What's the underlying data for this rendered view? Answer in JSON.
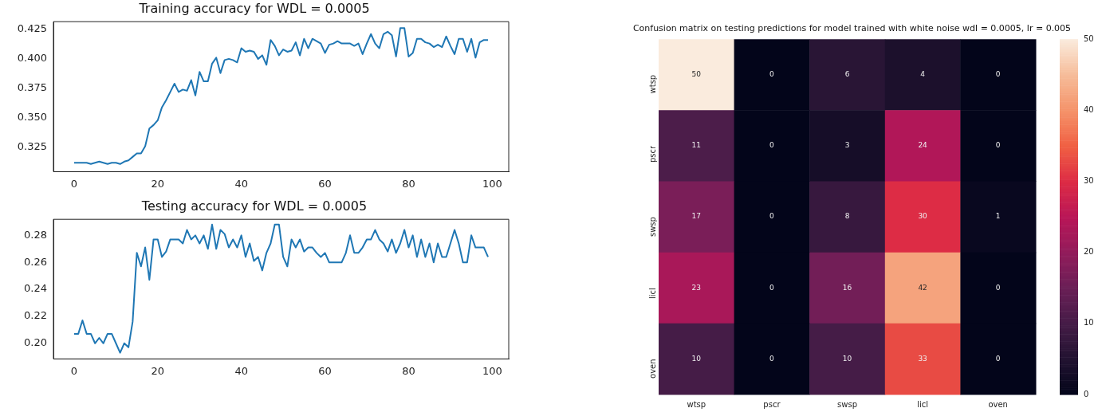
{
  "chart_data": [
    {
      "type": "line",
      "title": "Training accuracy for WDL = 0.0005",
      "x": [
        0,
        1,
        2,
        3,
        4,
        5,
        6,
        7,
        8,
        9,
        10,
        11,
        12,
        13,
        14,
        15,
        16,
        17,
        18,
        19,
        20,
        21,
        22,
        23,
        24,
        25,
        26,
        27,
        28,
        29,
        30,
        31,
        32,
        33,
        34,
        35,
        36,
        37,
        38,
        39,
        40,
        41,
        42,
        43,
        44,
        45,
        46,
        47,
        48,
        49,
        50,
        51,
        52,
        53,
        54,
        55,
        56,
        57,
        58,
        59,
        60,
        61,
        62,
        63,
        64,
        65,
        66,
        67,
        68,
        69,
        70,
        71,
        72,
        73,
        74,
        75,
        76,
        77,
        78,
        79,
        80,
        81,
        82,
        83,
        84,
        85,
        86,
        87,
        88,
        89,
        90,
        91,
        92,
        93,
        94,
        95,
        96,
        97,
        98,
        99
      ],
      "series": [
        {
          "color": "#1f77b4",
          "values": [
            0.312,
            0.312,
            0.312,
            0.312,
            0.311,
            0.312,
            0.313,
            0.312,
            0.311,
            0.312,
            0.312,
            0.311,
            0.313,
            0.314,
            0.317,
            0.32,
            0.32,
            0.326,
            0.341,
            0.344,
            0.348,
            0.359,
            0.365,
            0.372,
            0.379,
            0.372,
            0.374,
            0.373,
            0.382,
            0.369,
            0.389,
            0.381,
            0.381,
            0.396,
            0.401,
            0.388,
            0.399,
            0.4,
            0.399,
            0.397,
            0.409,
            0.406,
            0.407,
            0.406,
            0.4,
            0.403,
            0.395,
            0.416,
            0.411,
            0.403,
            0.408,
            0.406,
            0.407,
            0.414,
            0.403,
            0.417,
            0.409,
            0.417,
            0.415,
            0.413,
            0.405,
            0.412,
            0.413,
            0.415,
            0.413,
            0.413,
            0.413,
            0.411,
            0.413,
            0.404,
            0.413,
            0.421,
            0.413,
            0.409,
            0.421,
            0.423,
            0.42,
            0.402,
            0.426,
            0.426,
            0.402,
            0.405,
            0.417,
            0.417,
            0.414,
            0.413,
            0.41,
            0.412,
            0.41,
            0.419,
            0.411,
            0.404,
            0.417,
            0.417,
            0.406,
            0.417,
            0.401,
            0.414,
            0.416,
            0.416
          ]
        }
      ],
      "xlim": [
        -4.95,
        103.95
      ],
      "xticks": [
        0,
        20,
        40,
        60,
        80,
        100
      ],
      "ylim": [
        0.3045,
        0.4315
      ],
      "yticks": [
        0.325,
        {
          "value": 0.35,
          "label": "0.350"
        },
        0.375,
        {
          "value": 0.4,
          "label": "0.400"
        },
        0.425
      ],
      "grid": false,
      "legend": false,
      "marker": "none",
      "line_style": "solid"
    },
    {
      "type": "line",
      "title": "Testing accuracy for WDL = 0.0005",
      "x": [
        0,
        1,
        2,
        3,
        4,
        5,
        6,
        7,
        8,
        9,
        10,
        11,
        12,
        13,
        14,
        15,
        16,
        17,
        18,
        19,
        20,
        21,
        22,
        23,
        24,
        25,
        26,
        27,
        28,
        29,
        30,
        31,
        32,
        33,
        34,
        35,
        36,
        37,
        38,
        39,
        40,
        41,
        42,
        43,
        44,
        45,
        46,
        47,
        48,
        49,
        50,
        51,
        52,
        53,
        54,
        55,
        56,
        57,
        58,
        59,
        60,
        61,
        62,
        63,
        64,
        65,
        66,
        67,
        68,
        69,
        70,
        71,
        72,
        73,
        74,
        75,
        76,
        77,
        78,
        79,
        80,
        81,
        82,
        83,
        84,
        85,
        86,
        87,
        88,
        89,
        90,
        91,
        92,
        93,
        94,
        95,
        96,
        97,
        98,
        99
      ],
      "series": [
        {
          "color": "#1f77b4",
          "values": [
            0.207,
            0.207,
            0.217,
            0.207,
            0.207,
            0.2,
            0.204,
            0.2,
            0.207,
            0.207,
            0.2,
            0.193,
            0.2,
            0.197,
            0.216,
            0.267,
            0.257,
            0.271,
            0.247,
            0.277,
            0.277,
            0.264,
            0.268,
            0.277,
            0.277,
            0.277,
            0.274,
            0.284,
            0.277,
            0.28,
            0.274,
            0.28,
            0.27,
            0.288,
            0.27,
            0.284,
            0.281,
            0.271,
            0.277,
            0.271,
            0.28,
            0.264,
            0.274,
            0.261,
            0.264,
            0.254,
            0.267,
            0.274,
            0.288,
            0.288,
            0.264,
            0.257,
            0.277,
            0.271,
            0.277,
            0.268,
            0.271,
            0.271,
            0.267,
            0.264,
            0.267,
            0.26,
            0.26,
            0.26,
            0.26,
            0.267,
            0.28,
            0.267,
            0.267,
            0.271,
            0.277,
            0.277,
            0.284,
            0.277,
            0.274,
            0.268,
            0.277,
            0.267,
            0.274,
            0.284,
            0.271,
            0.28,
            0.264,
            0.277,
            0.264,
            0.274,
            0.26,
            0.274,
            0.264,
            0.264,
            0.274,
            0.284,
            0.274,
            0.26,
            0.26,
            0.28,
            0.271,
            0.271,
            0.271,
            0.264
          ]
        }
      ],
      "xlim": [
        -4.95,
        103.95
      ],
      "xticks": [
        0,
        20,
        40,
        60,
        80,
        100
      ],
      "ylim": [
        0.1884,
        0.2919
      ],
      "yticks": [
        {
          "value": 0.2,
          "label": "0.20"
        },
        0.22,
        0.24,
        0.26,
        0.28
      ],
      "grid": false,
      "legend": false,
      "marker": "none",
      "line_style": "solid"
    },
    {
      "type": "heatmap",
      "title": "Confusion matrix on testing predictions for model trained with white noise wdl = 0.0005, lr = 0.005",
      "categories": [
        "wtsp",
        "pscr",
        "swsp",
        "licl",
        "oven"
      ],
      "y_categories": [
        "wtsp",
        "pscr",
        "swsp",
        "licl",
        "oven"
      ],
      "cells": [
        [
          50,
          0,
          6,
          4,
          0
        ],
        [
          11,
          0,
          3,
          24,
          0
        ],
        [
          17,
          0,
          8,
          30,
          1
        ],
        [
          23,
          0,
          16,
          42,
          0
        ],
        [
          10,
          0,
          10,
          33,
          0
        ]
      ],
      "clim": [
        0,
        50
      ],
      "cticks": [
        0,
        10,
        20,
        30,
        40,
        50
      ],
      "data_labels": true
    }
  ]
}
